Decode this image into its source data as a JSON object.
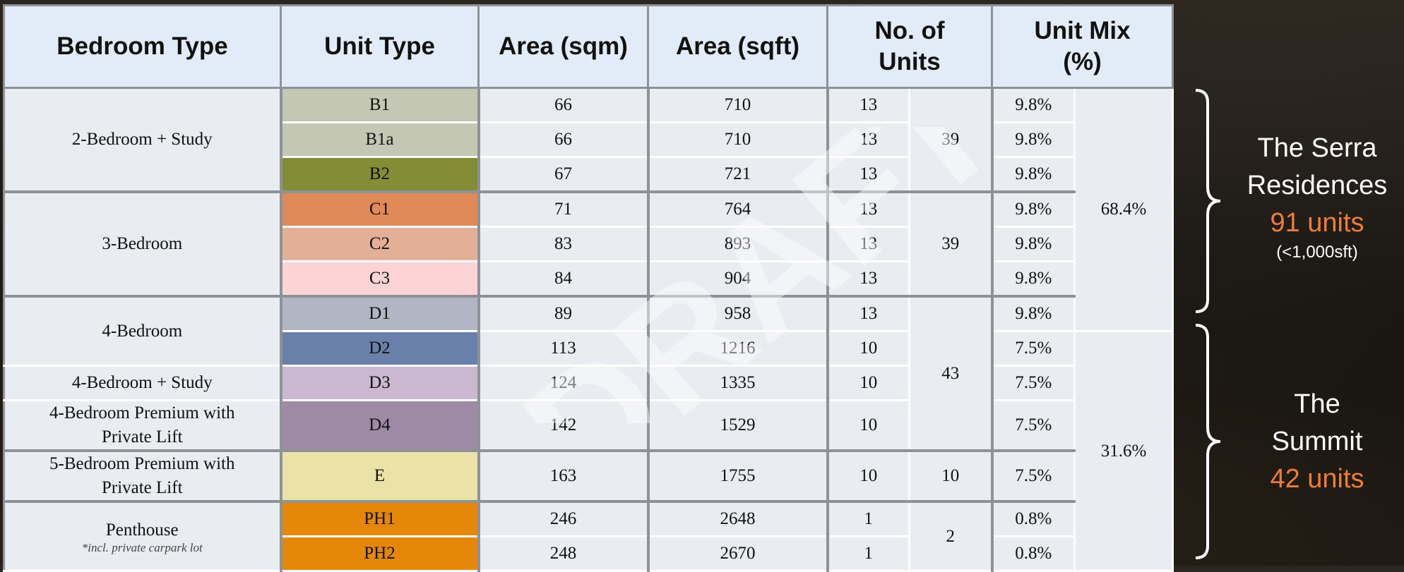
{
  "headers": {
    "bedroom_type": "Bedroom Type",
    "unit_type": "Unit Type",
    "area_sqm": "Area (sqm)",
    "area_sqft": "Area (sqft)",
    "no_units_line1": "No. of",
    "no_units_line2": "Units",
    "mix_line1": "Unit Mix",
    "mix_line2": "(%)"
  },
  "bedroom_groups": {
    "g1": "2-Bedroom + Study",
    "g2": "3-Bedroom",
    "g3": "4-Bedroom",
    "g4": "4-Bedroom + Study",
    "g5_line1": "4-Bedroom Premium with",
    "g5_line2": "Private Lift",
    "g6_line1": "5-Bedroom Premium with",
    "g6_line2": "Private Lift",
    "g7": "Penthouse",
    "g7_note": "*incl. private carpark lot"
  },
  "rows": [
    {
      "unit": "B1",
      "color": "#c4c7b3",
      "sqm": "66",
      "sqft": "710",
      "units": "13",
      "mix": "9.8%"
    },
    {
      "unit": "B1a",
      "color": "#c4c7b3",
      "sqm": "66",
      "sqft": "710",
      "units": "13",
      "mix": "9.8%"
    },
    {
      "unit": "B2",
      "color": "#848c36",
      "sqm": "67",
      "sqft": "721",
      "units": "13",
      "mix": "9.8%"
    },
    {
      "unit": "C1",
      "color": "#df8a58",
      "sqm": "71",
      "sqft": "764",
      "units": "13",
      "mix": "9.8%"
    },
    {
      "unit": "C2",
      "color": "#e3b097",
      "sqm": "83",
      "sqft": "893",
      "units": "13",
      "mix": "9.8%"
    },
    {
      "unit": "C3",
      "color": "#fdd3d6",
      "sqm": "84",
      "sqft": "904",
      "units": "13",
      "mix": "9.8%"
    },
    {
      "unit": "D1",
      "color": "#b0b6c3",
      "sqm": "89",
      "sqft": "958",
      "units": "13",
      "mix": "9.8%"
    },
    {
      "unit": "D2",
      "color": "#6a80ab",
      "sqm": "113",
      "sqft": "1216",
      "units": "10",
      "mix": "7.5%"
    },
    {
      "unit": "D3",
      "color": "#c9b8cf",
      "sqm": "124",
      "sqft": "1335",
      "units": "10",
      "mix": "7.5%"
    },
    {
      "unit": "D4",
      "color": "#9e8aa5",
      "sqm": "142",
      "sqft": "1529",
      "units": "10",
      "mix": "7.5%"
    },
    {
      "unit": "E",
      "color": "#ebe2a8",
      "sqm": "163",
      "sqft": "1755",
      "units": "10",
      "mix": "7.5%"
    },
    {
      "unit": "PH1",
      "color": "#e58708",
      "sqm": "246",
      "sqft": "2648",
      "units": "1",
      "mix": "0.8%"
    },
    {
      "unit": "PH2",
      "color": "#e58708",
      "sqm": "248",
      "sqft": "2670",
      "units": "1",
      "mix": "0.8%"
    }
  ],
  "group_totals": {
    "two_bed": "39",
    "three_bed": "39",
    "four_bed": "43",
    "five_bed": "10",
    "penthouse": "2"
  },
  "mix_totals": {
    "serra": "68.4%",
    "summit": "31.6%"
  },
  "watermark": "DRAFT",
  "side_labels": {
    "serra_line1": "The Serra",
    "serra_line2": "Residences",
    "serra_units": "91 units",
    "serra_note": "(<1,000sft)",
    "summit_line1": "The",
    "summit_line2": "Summit",
    "summit_units": "42 units",
    "accent_color": "#ee7d34"
  }
}
